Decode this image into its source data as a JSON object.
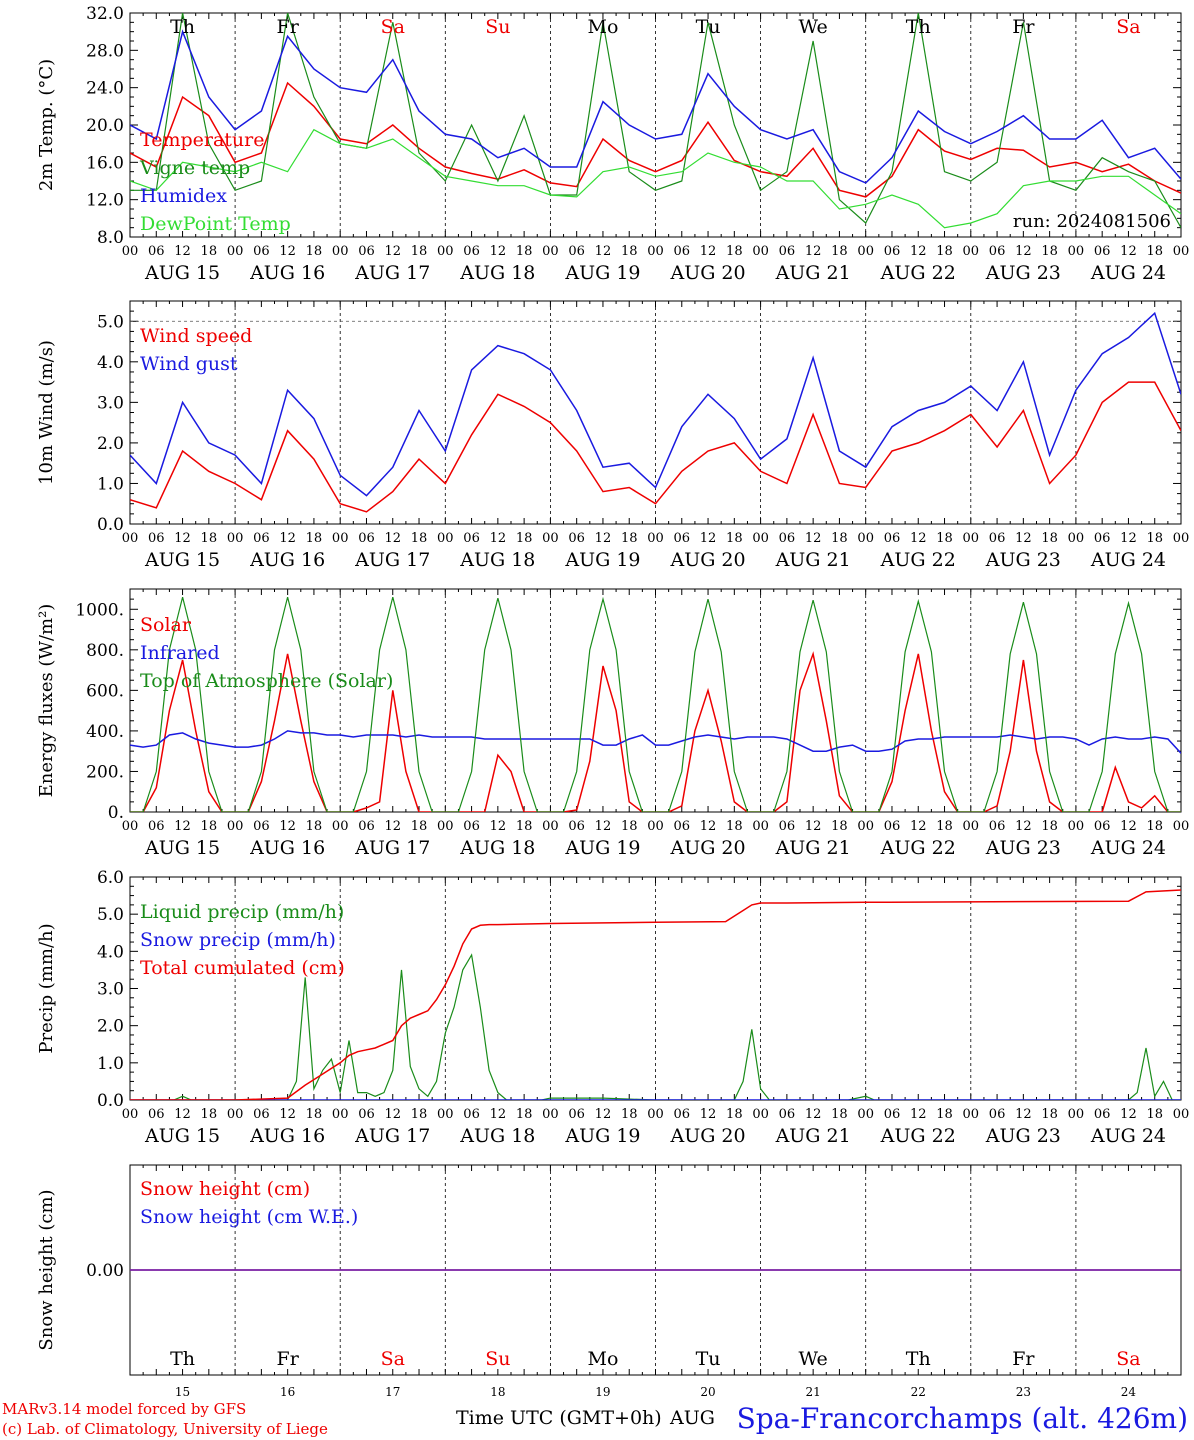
{
  "colors": {
    "red": "#ee0000",
    "green": "#1a8c1a",
    "blue": "#1a1ae0",
    "lightgreen": "#33dd33",
    "purple": "#7a1fa2",
    "axis": "#000000"
  },
  "days": {
    "weekdays": [
      "Th",
      "Fr",
      "Sa",
      "Su",
      "Mo",
      "Tu",
      "We",
      "Th",
      "Fr",
      "Sa"
    ],
    "weekday_colors": [
      "black",
      "black",
      "red",
      "red",
      "black",
      "black",
      "black",
      "black",
      "black",
      "red"
    ],
    "dates": [
      "AUG 15",
      "AUG 16",
      "AUG 17",
      "AUG 18",
      "AUG 19",
      "AUG 20",
      "AUG 21",
      "AUG 22",
      "AUG 23",
      "AUG 24"
    ],
    "day_numbers": [
      "15",
      "16",
      "17",
      "18",
      "19",
      "20",
      "21",
      "22",
      "23",
      "24"
    ],
    "hour_ticks": [
      "00",
      "06",
      "12",
      "18"
    ],
    "final_tick": "00"
  },
  "footer": {
    "model_line": "MARv3.14 model forced by GFS",
    "credit_line": "(c) Lab. of Climatology, University of Liege",
    "xlabel": "Time UTC (GMT+0h)",
    "month_label": "AUG",
    "station": "Spa-Francorchamps (alt. 426m)"
  },
  "chart_data": [
    {
      "type": "line",
      "ylabel": "2m Temp. (°C)",
      "ylim": [
        8.0,
        32.0
      ],
      "yticks": [
        "8.0",
        "12.0",
        "16.0",
        "20.0",
        "24.0",
        "28.0",
        "32.0"
      ],
      "annotation": "run: 2024081506",
      "legend_placement": "left",
      "x_hours": [
        0,
        6,
        12,
        18,
        24,
        30,
        36,
        42,
        48,
        54,
        60,
        66,
        72,
        78,
        84,
        90,
        96,
        102,
        108,
        114,
        120,
        126,
        132,
        138,
        144,
        150,
        156,
        162,
        168,
        174,
        180,
        186,
        192,
        198,
        204,
        210,
        216,
        222,
        228,
        234,
        240
      ],
      "series": [
        {
          "name": "Temperature",
          "color": "red",
          "values": [
            17,
            15.5,
            23,
            21,
            16,
            17,
            24.5,
            22,
            18.5,
            18,
            20,
            17.5,
            15.5,
            14.8,
            14.2,
            15.2,
            13.8,
            13.4,
            18.5,
            16.2,
            15,
            16.2,
            20.3,
            16.2,
            15,
            14.5,
            17.5,
            13,
            12.3,
            14.5,
            19.5,
            17.2,
            16.3,
            17.5,
            17.3,
            15.5,
            16,
            15,
            15.8,
            14,
            12.7
          ]
        },
        {
          "name": "Vigne temp",
          "color": "green",
          "values": [
            13,
            13,
            32,
            18,
            13,
            14,
            32,
            23,
            18,
            17.5,
            31,
            17,
            14,
            20,
            14,
            21,
            12.5,
            12.5,
            31,
            15,
            13,
            14,
            31,
            20,
            13,
            15,
            29,
            12,
            9.5,
            15,
            32,
            15,
            14,
            16,
            31,
            14,
            13,
            16.5,
            15,
            14,
            9
          ]
        },
        {
          "name": "Humidex",
          "color": "blue",
          "values": [
            20,
            18.5,
            30,
            23,
            19.5,
            21.5,
            29.5,
            26,
            24,
            23.5,
            27,
            21.5,
            19,
            18.5,
            16.5,
            17.5,
            15.5,
            15.5,
            22.5,
            20,
            18.5,
            19,
            25.5,
            22,
            19.5,
            18.5,
            19.5,
            15,
            13.8,
            16.5,
            21.5,
            19.3,
            18,
            19.3,
            21,
            18.5,
            18.5,
            20.5,
            16.5,
            17.5,
            14.2
          ]
        },
        {
          "name": "DewPoint Temp",
          "color": "lightgreen",
          "values": [
            14,
            13,
            16,
            15.5,
            15,
            16,
            15,
            19.5,
            18,
            17.5,
            18.5,
            16.5,
            14.5,
            14,
            13.5,
            13.5,
            12.5,
            12.3,
            15,
            15.5,
            14.5,
            15,
            17,
            16,
            15.5,
            14,
            14,
            11,
            11.5,
            12.5,
            11.5,
            9,
            9.5,
            10.5,
            13.5,
            14,
            14,
            14.5,
            14.5,
            12.5,
            10.5
          ]
        }
      ]
    },
    {
      "type": "line",
      "ylabel": "10m Wind (m/s)",
      "ylim": [
        0.0,
        5.5
      ],
      "yticks": [
        "0.0",
        "1.0",
        "2.0",
        "3.0",
        "4.0",
        "5.0"
      ],
      "reference_line": 5.0,
      "legend_placement": "left",
      "x_hours": [
        0,
        6,
        12,
        18,
        24,
        30,
        36,
        42,
        48,
        54,
        60,
        66,
        72,
        78,
        84,
        90,
        96,
        102,
        108,
        114,
        120,
        126,
        132,
        138,
        144,
        150,
        156,
        162,
        168,
        174,
        180,
        186,
        192,
        198,
        204,
        210,
        216,
        222,
        228,
        234,
        240
      ],
      "series": [
        {
          "name": "Wind speed",
          "color": "red",
          "values": [
            0.6,
            0.4,
            1.8,
            1.3,
            1.0,
            0.6,
            2.3,
            1.6,
            0.5,
            0.3,
            0.8,
            1.6,
            1.0,
            2.2,
            3.2,
            2.9,
            2.5,
            1.8,
            0.8,
            0.9,
            0.5,
            1.3,
            1.8,
            2.0,
            1.3,
            1.0,
            2.7,
            1.0,
            0.9,
            1.8,
            2.0,
            2.3,
            2.7,
            1.9,
            2.8,
            1.0,
            1.7,
            3.0,
            3.5,
            3.5,
            2.3
          ]
        },
        {
          "name": "Wind gust",
          "color": "blue",
          "values": [
            1.7,
            1.0,
            3.0,
            2.0,
            1.7,
            1.0,
            3.3,
            2.6,
            1.2,
            0.7,
            1.4,
            2.8,
            1.8,
            3.8,
            4.4,
            4.2,
            3.8,
            2.8,
            1.4,
            1.5,
            0.9,
            2.4,
            3.2,
            2.6,
            1.6,
            2.1,
            4.1,
            1.8,
            1.4,
            2.4,
            2.8,
            3.0,
            3.4,
            2.8,
            4.0,
            1.7,
            3.3,
            4.2,
            4.6,
            5.2,
            3.2
          ]
        }
      ]
    },
    {
      "type": "line",
      "ylabel": "Energy fluxes (W/m²)",
      "ylim": [
        0,
        1100
      ],
      "yticks": [
        "0.",
        "200.",
        "400.",
        "600.",
        "800.",
        "1000."
      ],
      "legend_placement": "left",
      "x_hours": [
        0,
        3,
        6,
        9,
        12,
        15,
        18,
        21,
        24,
        27,
        30,
        33,
        36,
        39,
        42,
        45,
        48,
        51,
        54,
        57,
        60,
        63,
        66,
        69,
        72,
        75,
        78,
        81,
        84,
        87,
        90,
        93,
        96,
        99,
        102,
        105,
        108,
        111,
        114,
        117,
        120,
        123,
        126,
        129,
        132,
        135,
        138,
        141,
        144,
        147,
        150,
        153,
        156,
        159,
        162,
        165,
        168,
        171,
        174,
        177,
        180,
        183,
        186,
        189,
        192,
        195,
        198,
        201,
        204,
        207,
        210,
        213,
        216,
        219,
        222,
        225,
        228,
        231,
        234,
        237,
        240
      ],
      "series": [
        {
          "name": "Solar",
          "color": "red",
          "values": [
            0,
            0,
            120,
            500,
            750,
            400,
            100,
            0,
            0,
            0,
            150,
            450,
            780,
            450,
            150,
            0,
            0,
            0,
            20,
            50,
            600,
            200,
            0,
            0,
            0,
            0,
            0,
            0,
            280,
            200,
            0,
            0,
            0,
            0,
            10,
            250,
            720,
            500,
            50,
            0,
            0,
            0,
            30,
            400,
            600,
            350,
            50,
            0,
            0,
            0,
            50,
            600,
            780,
            450,
            80,
            0,
            0,
            0,
            150,
            500,
            780,
            400,
            100,
            0,
            0,
            0,
            30,
            300,
            750,
            300,
            50,
            0,
            0,
            0,
            0,
            220,
            50,
            20,
            80,
            0,
            0
          ]
        },
        {
          "name": "Infrared",
          "color": "blue",
          "values": [
            330,
            320,
            330,
            380,
            390,
            360,
            340,
            330,
            320,
            320,
            330,
            360,
            400,
            390,
            390,
            380,
            380,
            370,
            380,
            380,
            380,
            370,
            380,
            370,
            370,
            370,
            370,
            360,
            360,
            360,
            360,
            360,
            360,
            360,
            360,
            360,
            330,
            330,
            360,
            380,
            330,
            330,
            350,
            370,
            380,
            370,
            360,
            370,
            370,
            370,
            360,
            330,
            300,
            300,
            320,
            330,
            300,
            300,
            310,
            350,
            360,
            360,
            370,
            370,
            370,
            370,
            370,
            380,
            370,
            360,
            370,
            370,
            360,
            330,
            360,
            370,
            360,
            360,
            370,
            360,
            290
          ]
        },
        {
          "name": "Top of Atmosphere (Solar)",
          "color": "green",
          "values": [
            0,
            0,
            200,
            800,
            1060,
            800,
            200,
            0,
            0,
            0,
            200,
            800,
            1060,
            800,
            200,
            0,
            0,
            0,
            200,
            800,
            1060,
            800,
            200,
            0,
            0,
            0,
            200,
            800,
            1055,
            800,
            200,
            0,
            0,
            0,
            200,
            800,
            1050,
            800,
            200,
            0,
            0,
            0,
            200,
            790,
            1050,
            790,
            200,
            0,
            0,
            0,
            200,
            790,
            1045,
            790,
            200,
            0,
            0,
            0,
            200,
            790,
            1040,
            790,
            200,
            0,
            0,
            0,
            200,
            780,
            1035,
            780,
            200,
            0,
            0,
            0,
            200,
            780,
            1030,
            780,
            200,
            0,
            0
          ]
        }
      ]
    },
    {
      "type": "line",
      "ylabel": "Precip (mm/h)",
      "ylim": [
        0.0,
        6.0
      ],
      "yticks": [
        "0.0",
        "1.0",
        "2.0",
        "3.0",
        "4.0",
        "5.0",
        "6.0"
      ],
      "legend_placement": "left",
      "series": [
        {
          "name": "Liquid precip (mm/h)",
          "color": "green",
          "x": [
            0,
            10,
            12,
            14,
            16,
            18,
            20,
            22,
            24,
            30,
            36,
            38,
            40,
            42,
            44,
            46,
            48,
            50,
            52,
            54,
            56,
            58,
            60,
            62,
            64,
            66,
            68,
            70,
            72,
            74,
            76,
            78,
            80,
            82,
            84,
            86,
            88,
            90,
            92,
            94,
            96,
            108,
            120,
            138,
            140,
            142,
            144,
            146,
            150,
            164,
            168,
            170,
            180,
            216,
            228,
            230,
            232,
            234,
            236,
            238,
            240
          ],
          "values": [
            0,
            0,
            0.1,
            0,
            0,
            0,
            0,
            0,
            0,
            0,
            0,
            0.5,
            3.3,
            0.3,
            0.8,
            1.1,
            0.2,
            1.6,
            0.2,
            0.2,
            0.1,
            0.2,
            0.8,
            3.5,
            0.9,
            0.3,
            0.1,
            0.5,
            1.8,
            2.5,
            3.5,
            3.9,
            2.5,
            0.8,
            0.2,
            0,
            0,
            0,
            0,
            0,
            0.05,
            0.05,
            0,
            0,
            0.5,
            1.9,
            0.3,
            0,
            0,
            0,
            0.1,
            0,
            0,
            0,
            0,
            0.2,
            1.4,
            0.1,
            0.5,
            0,
            0
          ]
        },
        {
          "name": "Snow precip (mm/h)",
          "color": "blue",
          "x": [
            0,
            240
          ],
          "values": [
            0,
            0
          ]
        },
        {
          "name": "Total cumulated (cm)",
          "color": "red",
          "x": [
            0,
            24,
            36,
            40,
            42,
            44,
            46,
            48,
            50,
            52,
            54,
            56,
            60,
            62,
            64,
            66,
            68,
            70,
            72,
            74,
            76,
            78,
            80,
            82,
            84,
            96,
            120,
            136,
            140,
            142,
            144,
            150,
            168,
            228,
            232,
            240
          ],
          "values": [
            0,
            0,
            0.05,
            0.4,
            0.55,
            0.7,
            0.85,
            1.0,
            1.2,
            1.3,
            1.35,
            1.4,
            1.6,
            2.0,
            2.2,
            2.3,
            2.4,
            2.7,
            3.1,
            3.6,
            4.2,
            4.6,
            4.7,
            4.72,
            4.72,
            4.75,
            4.78,
            4.8,
            5.1,
            5.25,
            5.3,
            5.3,
            5.32,
            5.35,
            5.6,
            5.65
          ]
        }
      ]
    },
    {
      "type": "line",
      "ylabel": "Snow height (cm)",
      "ytick": "0.00",
      "legend_placement": "left",
      "x_hours": [
        0,
        240
      ],
      "series": [
        {
          "name": "Snow height (cm)",
          "color": "red",
          "values": [
            0,
            0
          ]
        },
        {
          "name": "Snow height (cm W.E.)",
          "color": "blue",
          "values": [
            0,
            0
          ]
        }
      ]
    }
  ]
}
